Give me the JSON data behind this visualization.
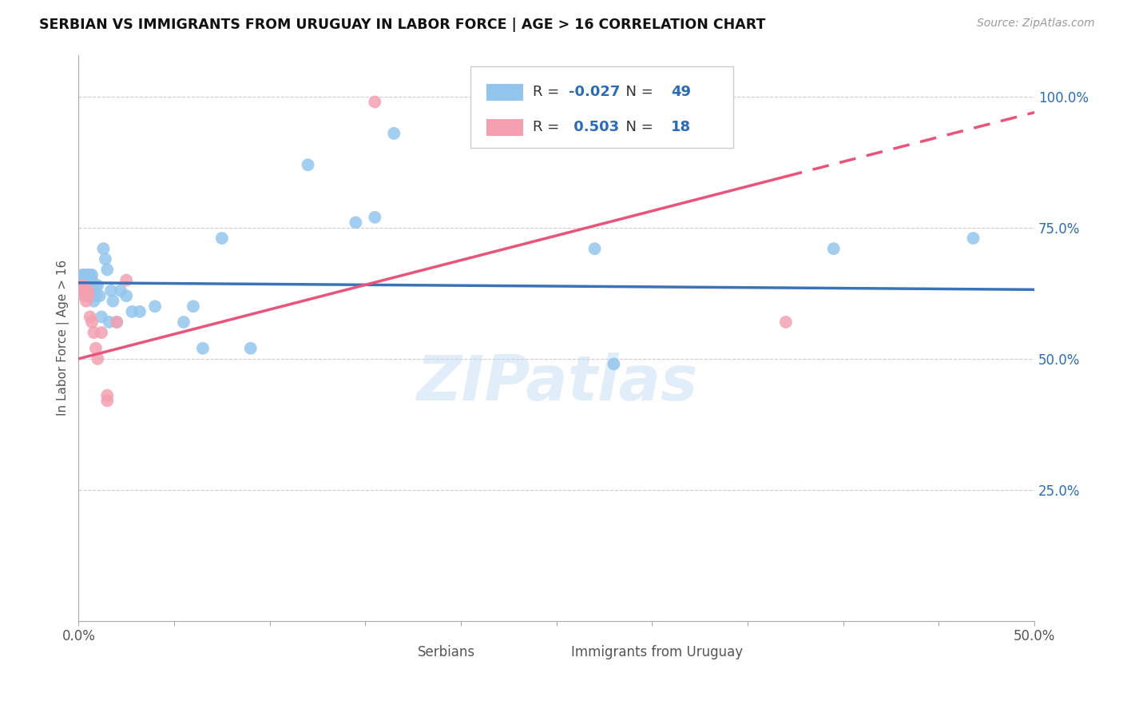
{
  "title": "SERBIAN VS IMMIGRANTS FROM URUGUAY IN LABOR FORCE | AGE > 16 CORRELATION CHART",
  "source": "Source: ZipAtlas.com",
  "ylabel": "In Labor Force | Age > 16",
  "xlim": [
    0.0,
    0.5
  ],
  "ylim": [
    0.0,
    1.08
  ],
  "yticks": [
    0.0,
    0.25,
    0.5,
    0.75,
    1.0
  ],
  "ytick_labels": [
    "",
    "25.0%",
    "50.0%",
    "75.0%",
    "100.0%"
  ],
  "xticks": [
    0.0,
    0.05,
    0.1,
    0.15,
    0.2,
    0.25,
    0.3,
    0.35,
    0.4,
    0.45,
    0.5
  ],
  "xtick_labels": [
    "0.0%",
    "",
    "",
    "",
    "",
    "",
    "",
    "",
    "",
    "",
    "50.0%"
  ],
  "serbians_color": "#93C6EE",
  "immigrants_color": "#F4A0B0",
  "trend_serbian_color": "#3B73B9",
  "trend_immigrant_color": "#E8547A",
  "R_serbian": -0.027,
  "N_serbian": 49,
  "R_immigrant": 0.503,
  "N_immigrant": 18,
  "watermark": "ZIPatlas",
  "serbians_x": [
    0.001,
    0.002,
    0.002,
    0.003,
    0.003,
    0.003,
    0.004,
    0.004,
    0.005,
    0.005,
    0.005,
    0.006,
    0.006,
    0.007,
    0.007,
    0.007,
    0.008,
    0.008,
    0.008,
    0.009,
    0.009,
    0.01,
    0.011,
    0.012,
    0.013,
    0.014,
    0.015,
    0.016,
    0.017,
    0.018,
    0.02,
    0.022,
    0.025,
    0.028,
    0.032,
    0.04,
    0.055,
    0.06,
    0.065,
    0.075,
    0.09,
    0.12,
    0.145,
    0.155,
    0.165,
    0.27,
    0.28,
    0.395,
    0.468
  ],
  "serbians_y": [
    0.63,
    0.65,
    0.66,
    0.63,
    0.65,
    0.66,
    0.64,
    0.66,
    0.63,
    0.65,
    0.66,
    0.64,
    0.66,
    0.63,
    0.65,
    0.66,
    0.64,
    0.63,
    0.61,
    0.64,
    0.62,
    0.64,
    0.62,
    0.58,
    0.71,
    0.69,
    0.67,
    0.57,
    0.63,
    0.61,
    0.57,
    0.63,
    0.62,
    0.59,
    0.59,
    0.6,
    0.57,
    0.6,
    0.52,
    0.73,
    0.52,
    0.87,
    0.76,
    0.77,
    0.93,
    0.71,
    0.49,
    0.71,
    0.73
  ],
  "immigrants_x": [
    0.001,
    0.002,
    0.003,
    0.004,
    0.005,
    0.005,
    0.006,
    0.007,
    0.008,
    0.009,
    0.01,
    0.012,
    0.015,
    0.015,
    0.02,
    0.025,
    0.155,
    0.37
  ],
  "immigrants_y": [
    0.63,
    0.64,
    0.62,
    0.61,
    0.62,
    0.63,
    0.58,
    0.57,
    0.55,
    0.52,
    0.5,
    0.55,
    0.43,
    0.42,
    0.57,
    0.65,
    0.99,
    0.57
  ],
  "trend_serbian_x0": 0.0,
  "trend_serbian_y0": 0.645,
  "trend_serbian_x1": 0.5,
  "trend_serbian_y1": 0.632,
  "trend_immigrant_x0": 0.0,
  "trend_immigrant_y0": 0.5,
  "trend_immigrant_x1": 0.5,
  "trend_immigrant_y1": 0.97,
  "trend_immigrant_solid_end": 0.37
}
